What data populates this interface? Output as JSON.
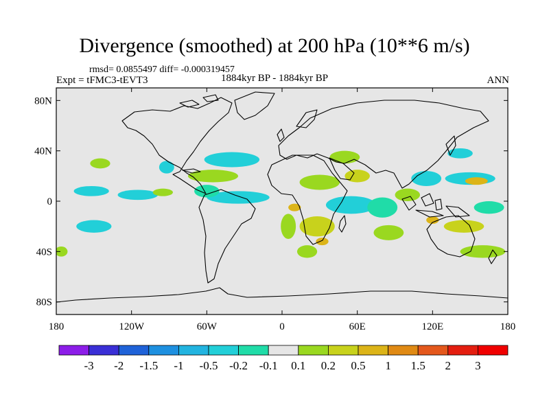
{
  "chart_data": {
    "type": "heatmap",
    "title": "Divergence (smoothed) at 200 hPa (10**6 m/s)",
    "stats_label": "rmsd= 0.0855497 diff= -0.000319457",
    "experiment_label": "Expt = tFMC3-tEVT3",
    "period_label": "1884kyr BP - 1884kyr BP",
    "season_label": "ANN",
    "x_axis": {
      "range": [
        -180,
        180
      ],
      "ticks": [
        -180,
        -120,
        -60,
        0,
        60,
        120,
        180
      ],
      "tick_labels": [
        "180",
        "120W",
        "60W",
        "0",
        "60E",
        "120E",
        "180"
      ]
    },
    "y_axis": {
      "range": [
        -90,
        90
      ],
      "ticks": [
        80,
        40,
        0,
        -40,
        -80
      ],
      "tick_labels": [
        "80N",
        "40N",
        "0",
        "40S",
        "80S"
      ]
    },
    "colorbar": {
      "labels": [
        "-3",
        "-2",
        "-1.5",
        "-1",
        "-0.5",
        "-0.2",
        "-0.1",
        "0.1",
        "0.2",
        "0.5",
        "1",
        "1.5",
        "2",
        "3"
      ],
      "colors": [
        "#8c1de8",
        "#3a2fd6",
        "#1f62d8",
        "#1e90e0",
        "#22b4e0",
        "#22cfd8",
        "#20dca8",
        "#e6e6e6",
        "#9ad820",
        "#c8d21c",
        "#dcb418",
        "#e08a14",
        "#e4581c",
        "#e41e10",
        "#f00000"
      ]
    },
    "background_color": "#e6e6e6",
    "regions": [
      {
        "level": "-0.2",
        "lon": -152,
        "lat": 8,
        "rx": 14,
        "ry": 4
      },
      {
        "level": "-0.2",
        "lon": -150,
        "lat": -20,
        "rx": 14,
        "ry": 5
      },
      {
        "level": "-0.2",
        "lon": -115,
        "lat": 5,
        "rx": 16,
        "ry": 4
      },
      {
        "level": "-0.2",
        "lon": -92,
        "lat": 27,
        "rx": 6,
        "ry": 5
      },
      {
        "level": "-0.2",
        "lon": -40,
        "lat": 33,
        "rx": 22,
        "ry": 6
      },
      {
        "level": "-0.2",
        "lon": -35,
        "lat": 3,
        "rx": 25,
        "ry": 5
      },
      {
        "level": "-0.2",
        "lon": 55,
        "lat": -3,
        "rx": 20,
        "ry": 7
      },
      {
        "level": "-0.2",
        "lon": 115,
        "lat": 18,
        "rx": 12,
        "ry": 6
      },
      {
        "level": "-0.2",
        "lon": 150,
        "lat": 18,
        "rx": 20,
        "ry": 5
      },
      {
        "level": "-0.2",
        "lon": 142,
        "lat": 38,
        "rx": 10,
        "ry": 4
      },
      {
        "level": "-0.1",
        "lon": -60,
        "lat": 8,
        "rx": 10,
        "ry": 5
      },
      {
        "level": "-0.1",
        "lon": 80,
        "lat": -5,
        "rx": 12,
        "ry": 8
      },
      {
        "level": "-0.1",
        "lon": 165,
        "lat": -5,
        "rx": 12,
        "ry": 5
      },
      {
        "level": "0.1",
        "lon": -145,
        "lat": 30,
        "rx": 8,
        "ry": 4
      },
      {
        "level": "0.1",
        "lon": -95,
        "lat": 7,
        "rx": 8,
        "ry": 3
      },
      {
        "level": "0.1",
        "lon": -55,
        "lat": 20,
        "rx": 20,
        "ry": 5
      },
      {
        "level": "0.1",
        "lon": 5,
        "lat": -20,
        "rx": 6,
        "ry": 10
      },
      {
        "level": "0.1",
        "lon": 30,
        "lat": 15,
        "rx": 16,
        "ry": 6
      },
      {
        "level": "0.1",
        "lon": 50,
        "lat": 35,
        "rx": 12,
        "ry": 5
      },
      {
        "level": "0.1",
        "lon": 20,
        "lat": -40,
        "rx": 8,
        "ry": 5
      },
      {
        "level": "0.1",
        "lon": 85,
        "lat": -25,
        "rx": 12,
        "ry": 6
      },
      {
        "level": "0.1",
        "lon": 100,
        "lat": 5,
        "rx": 10,
        "ry": 5
      },
      {
        "level": "0.1",
        "lon": 160,
        "lat": -40,
        "rx": 18,
        "ry": 5
      },
      {
        "level": "0.1",
        "lon": -176,
        "lat": -40,
        "rx": 5,
        "ry": 4
      },
      {
        "level": "0.2",
        "lon": 28,
        "lat": -20,
        "rx": 14,
        "ry": 8
      },
      {
        "level": "0.2",
        "lon": 60,
        "lat": 20,
        "rx": 10,
        "ry": 5
      },
      {
        "level": "0.2",
        "lon": 145,
        "lat": -20,
        "rx": 16,
        "ry": 5
      },
      {
        "level": "0.5",
        "lon": 155,
        "lat": 16,
        "rx": 9,
        "ry": 3
      },
      {
        "level": "0.5",
        "lon": 10,
        "lat": -5,
        "rx": 5,
        "ry": 3
      },
      {
        "level": "0.5",
        "lon": 32,
        "lat": -32,
        "rx": 5,
        "ry": 3
      },
      {
        "level": "0.5",
        "lon": 120,
        "lat": -15,
        "rx": 5,
        "ry": 3
      }
    ]
  }
}
